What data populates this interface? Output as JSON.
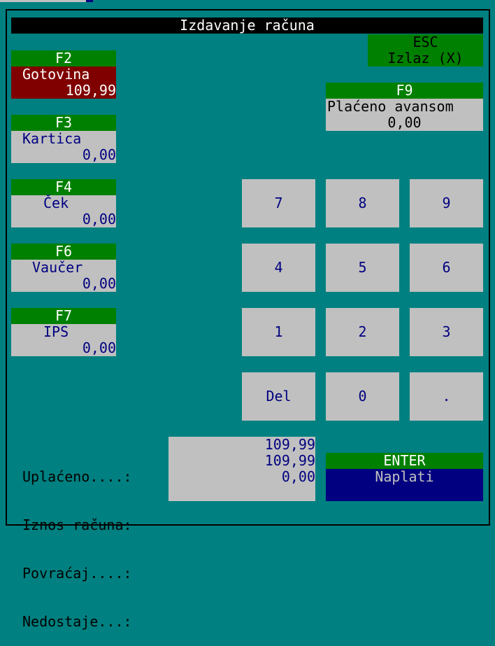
{
  "title": "Izdavanje računa",
  "esc": {
    "key": "ESC",
    "label": "Izlaz (X)"
  },
  "payments": [
    {
      "key": "F2",
      "label": "Gotovina",
      "value": "109,99"
    },
    {
      "key": "F3",
      "label": "Kartica",
      "value": "0,00"
    },
    {
      "key": "F4",
      "label": "Ček",
      "value": "0,00"
    },
    {
      "key": "F6",
      "label": "Vaučer",
      "value": "0,00"
    },
    {
      "key": "F7",
      "label": "IPS",
      "value": "0,00"
    }
  ],
  "advance": {
    "key": "F9",
    "label": "Plaćeno avansom",
    "value": "0,00"
  },
  "keypad": [
    "7",
    "8",
    "9",
    "4",
    "5",
    "6",
    "1",
    "2",
    "3",
    "Del",
    "0",
    "."
  ],
  "summary": {
    "labels": [
      "Uplaćeno....:",
      "Iznos računa:",
      "Povraćaj....:",
      "Nedostaje...:"
    ],
    "values": [
      "109,99",
      "109,99",
      "0,00",
      ""
    ]
  },
  "enter": {
    "key": "ENTER",
    "label": "Naplati"
  },
  "colors": {
    "background": "#008080",
    "header": "#008000",
    "active": "#800000",
    "field": "#c0c0c0",
    "primary": "#000080"
  }
}
